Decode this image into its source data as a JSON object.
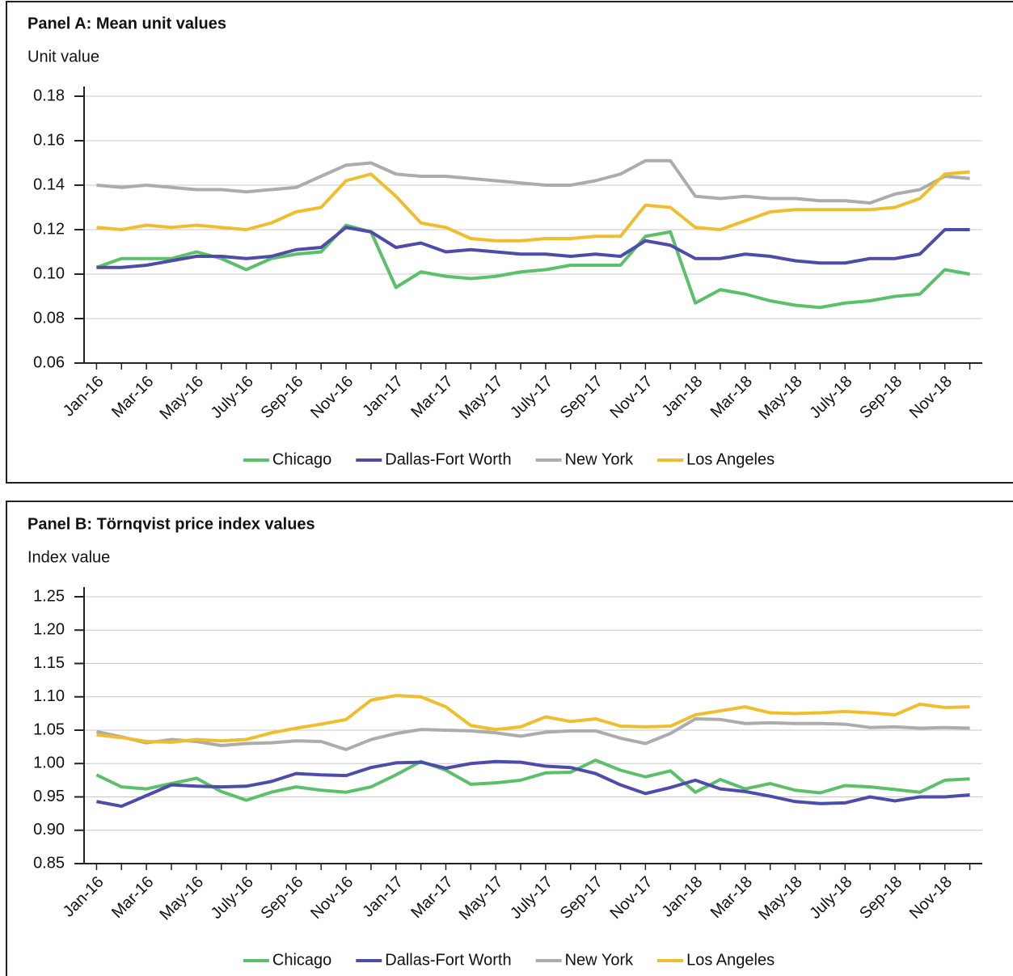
{
  "chart_data": [
    {
      "type": "line",
      "title": "Panel A: Mean unit values",
      "y_label": "Unit value",
      "categories": [
        "Jan-16",
        null,
        "Mar-16",
        null,
        "May-16",
        null,
        "July-16",
        null,
        "Sep-16",
        null,
        "Nov-16",
        null,
        "Jan-17",
        null,
        "Mar-17",
        null,
        "May-17",
        null,
        "July-17",
        null,
        "Sep-17",
        null,
        "Nov-17",
        null,
        "Jan-18",
        null,
        "Mar-18",
        null,
        "May-18",
        null,
        "July-18",
        null,
        "Sep-18",
        null,
        "Nov-18",
        null
      ],
      "ylim": [
        0.06,
        0.18
      ],
      "yticks": [
        0.06,
        0.08,
        {
          "value": 0.1,
          "label": "0.10"
        },
        0.12,
        0.14,
        0.16,
        0.18
      ],
      "grid": true,
      "legend": "bottom",
      "series": [
        {
          "name": "Chicago",
          "color": "#5cbf6a",
          "values": [
            0.103,
            0.107,
            0.107,
            0.107,
            0.11,
            0.107,
            0.102,
            0.107,
            0.109,
            0.11,
            0.122,
            0.119,
            0.094,
            0.101,
            0.099,
            0.098,
            0.099,
            0.101,
            0.102,
            0.104,
            0.104,
            0.104,
            0.117,
            0.119,
            0.087,
            0.093,
            0.091,
            0.088,
            0.086,
            0.085,
            0.087,
            0.088,
            0.09,
            0.091,
            0.102,
            0.1
          ]
        },
        {
          "name": "Dallas-Fort Worth",
          "color": "#4d4ca8",
          "values": [
            0.103,
            0.103,
            0.104,
            0.106,
            0.108,
            0.108,
            0.107,
            0.108,
            0.111,
            0.112,
            0.121,
            0.119,
            0.112,
            0.114,
            0.11,
            0.111,
            0.11,
            0.109,
            0.109,
            0.108,
            0.109,
            0.108,
            0.115,
            0.113,
            0.107,
            0.107,
            0.109,
            0.108,
            0.106,
            0.105,
            0.105,
            0.107,
            0.107,
            0.109,
            0.12,
            0.12
          ]
        },
        {
          "name": "New York",
          "color": "#acacac",
          "values": [
            0.14,
            0.139,
            0.14,
            0.139,
            0.138,
            0.138,
            0.137,
            0.138,
            0.139,
            0.144,
            0.149,
            0.15,
            0.145,
            0.144,
            0.144,
            0.143,
            0.142,
            0.141,
            0.14,
            0.14,
            0.142,
            0.145,
            0.151,
            0.151,
            0.135,
            0.134,
            0.135,
            0.134,
            0.134,
            0.133,
            0.133,
            0.132,
            0.136,
            0.138,
            0.144,
            0.143
          ]
        },
        {
          "name": "Los Angeles",
          "color": "#efbe2e",
          "values": [
            0.121,
            0.12,
            0.122,
            0.121,
            0.122,
            0.121,
            0.12,
            0.123,
            0.128,
            0.13,
            0.142,
            0.145,
            0.135,
            0.123,
            0.121,
            0.116,
            0.115,
            0.115,
            0.116,
            0.116,
            0.117,
            0.117,
            0.131,
            0.13,
            0.121,
            0.12,
            0.124,
            0.128,
            0.129,
            0.129,
            0.129,
            0.129,
            0.13,
            0.134,
            0.145,
            0.146
          ]
        }
      ]
    },
    {
      "type": "line",
      "title": "Panel B: Törnqvist price index values",
      "y_label": "Index value",
      "categories": [
        "Jan-16",
        null,
        "Mar-16",
        null,
        "May-16",
        null,
        "July-16",
        null,
        "Sep-16",
        null,
        "Nov-16",
        null,
        "Jan-17",
        null,
        "Mar-17",
        null,
        "May-17",
        null,
        "July-17",
        null,
        "Sep-17",
        null,
        "Nov-17",
        null,
        "Jan-18",
        null,
        "Mar-18",
        null,
        "May-18",
        null,
        "July-18",
        null,
        "Sep-18",
        null,
        "Nov-18",
        null
      ],
      "ylim": [
        0.85,
        1.25
      ],
      "yticks": [
        0.85,
        {
          "value": 0.9,
          "label": "0.90"
        },
        0.95,
        {
          "value": 1,
          "label": "1.00"
        },
        1.05,
        {
          "value": 1.1,
          "label": "1.10"
        },
        1.15,
        {
          "value": 1.2,
          "label": "1.20"
        },
        1.25
      ],
      "grid": true,
      "legend": "bottom",
      "series": [
        {
          "name": "Chicago",
          "color": "#5cbf6a",
          "values": [
            0.983,
            0.965,
            0.962,
            0.97,
            0.978,
            0.958,
            0.945,
            0.957,
            0.965,
            0.96,
            0.957,
            0.965,
            0.983,
            1.003,
            0.99,
            0.969,
            0.971,
            0.975,
            0.986,
            0.987,
            1.005,
            0.99,
            0.98,
            0.989,
            0.957,
            0.976,
            0.962,
            0.97,
            0.96,
            0.956,
            0.967,
            0.965,
            0.961,
            0.957,
            0.975,
            0.977
          ]
        },
        {
          "name": "Dallas-Fort Worth",
          "color": "#4d4ca8",
          "values": [
            0.943,
            0.936,
            0.952,
            0.968,
            0.966,
            0.965,
            0.966,
            0.973,
            0.985,
            0.983,
            0.982,
            0.994,
            1.001,
            1.002,
            0.993,
            1.0,
            1.003,
            1.002,
            0.996,
            0.994,
            0.985,
            0.968,
            0.955,
            0.964,
            0.975,
            0.962,
            0.958,
            0.951,
            0.943,
            0.94,
            0.941,
            0.95,
            0.944,
            0.95,
            0.95,
            0.953
          ]
        },
        {
          "name": "New York",
          "color": "#acacac",
          "values": [
            1.048,
            1.04,
            1.031,
            1.036,
            1.033,
            1.027,
            1.03,
            1.031,
            1.034,
            1.033,
            1.021,
            1.036,
            1.045,
            1.051,
            1.05,
            1.049,
            1.046,
            1.041,
            1.047,
            1.049,
            1.049,
            1.038,
            1.03,
            1.045,
            1.067,
            1.066,
            1.06,
            1.061,
            1.06,
            1.06,
            1.059,
            1.054,
            1.055,
            1.053,
            1.054,
            1.053
          ]
        },
        {
          "name": "Los Angeles",
          "color": "#efbe2e",
          "values": [
            1.043,
            1.039,
            1.033,
            1.032,
            1.036,
            1.034,
            1.036,
            1.046,
            1.053,
            1.059,
            1.066,
            1.095,
            1.102,
            1.1,
            1.085,
            1.057,
            1.051,
            1.055,
            1.07,
            1.063,
            1.067,
            1.056,
            1.055,
            1.056,
            1.073,
            1.079,
            1.085,
            1.076,
            1.075,
            1.076,
            1.078,
            1.076,
            1.073,
            1.089,
            1.084,
            1.085
          ]
        }
      ]
    }
  ]
}
